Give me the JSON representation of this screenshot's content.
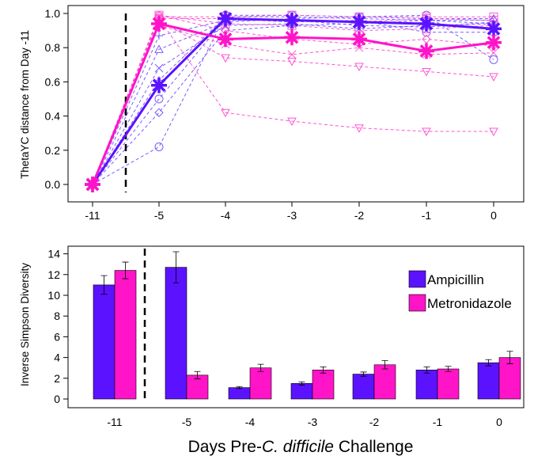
{
  "colors": {
    "ampicillin": "#5b13ff",
    "metronidazole": "#ff14c8",
    "ampicillin_light": "#7a5cff",
    "metronidazole_light": "#ff55d2",
    "frame": "#000000"
  },
  "chart_data": [
    {
      "type": "line",
      "title": "",
      "xlabel": "",
      "ylabel": "ThetaYC distance from Day -11",
      "categories": [
        "-11",
        "-5",
        "-4",
        "-3",
        "-2",
        "-1",
        "0"
      ],
      "ylim": [
        0,
        1.0
      ],
      "yticks": [
        "0.0",
        "0.2",
        "0.4",
        "0.6",
        "0.8",
        "1.0"
      ],
      "treatment_day_marker": "between -11 and -5",
      "series": [
        {
          "name": "Ampicillin",
          "group": "ampicillin",
          "kind": "mean",
          "values": [
            0.0,
            0.58,
            0.97,
            0.96,
            0.95,
            0.94,
            0.91
          ]
        },
        {
          "name": "Metronidazole",
          "group": "metronidazole",
          "kind": "mean",
          "values": [
            0.0,
            0.94,
            0.85,
            0.86,
            0.85,
            0.78,
            0.83
          ]
        },
        {
          "group": "ampicillin",
          "kind": "individual",
          "symbol": "circle",
          "values": [
            0.0,
            0.22,
            0.99,
            0.99,
            0.98,
            0.99,
            0.73
          ]
        },
        {
          "group": "ampicillin",
          "kind": "individual",
          "symbol": "plus",
          "values": [
            0.0,
            0.87,
            0.96,
            0.96,
            0.93,
            0.92,
            0.95
          ]
        },
        {
          "group": "ampicillin",
          "kind": "individual",
          "symbol": "triangle",
          "values": [
            0.0,
            0.79,
            0.95,
            0.97,
            0.98,
            0.97,
            0.97
          ]
        },
        {
          "group": "ampicillin",
          "kind": "individual",
          "symbol": "diamond",
          "values": [
            0.0,
            0.42,
            0.9,
            0.93,
            0.94,
            0.96,
            0.96
          ]
        },
        {
          "group": "ampicillin",
          "kind": "individual",
          "symbol": "x",
          "values": [
            0.0,
            0.68,
            0.93,
            0.94,
            0.91,
            0.93,
            0.94
          ]
        },
        {
          "group": "ampicillin",
          "kind": "individual",
          "symbol": "circle",
          "values": [
            0.0,
            0.5,
            0.97,
            0.95,
            0.96,
            0.89,
            0.89
          ]
        },
        {
          "group": "ampicillin",
          "kind": "individual",
          "symbol": "plus",
          "values": [
            0.0,
            0.61,
            0.98,
            0.98,
            0.97,
            0.96,
            0.94
          ]
        },
        {
          "group": "metronidazole",
          "kind": "individual",
          "symbol": "square",
          "values": [
            0.0,
            0.98,
            0.98,
            0.99,
            0.98,
            0.98,
            0.98
          ]
        },
        {
          "group": "metronidazole",
          "kind": "individual",
          "symbol": "tri-down",
          "values": [
            0.0,
            0.97,
            0.42,
            0.37,
            0.33,
            0.31,
            0.31
          ]
        },
        {
          "group": "metronidazole",
          "kind": "individual",
          "symbol": "tri-down",
          "values": [
            0.0,
            0.96,
            0.74,
            0.72,
            0.69,
            0.66,
            0.63
          ]
        },
        {
          "group": "metronidazole",
          "kind": "individual",
          "symbol": "x",
          "values": [
            0.0,
            0.93,
            0.82,
            0.76,
            0.8,
            0.76,
            0.77
          ]
        },
        {
          "group": "metronidazole",
          "kind": "individual",
          "symbol": "diamond",
          "values": [
            0.0,
            0.99,
            0.9,
            0.85,
            0.82,
            0.85,
            0.81
          ]
        },
        {
          "group": "metronidazole",
          "kind": "individual",
          "symbol": "square",
          "values": [
            0.0,
            0.99,
            0.94,
            0.93,
            0.9,
            0.91,
            0.93
          ]
        },
        {
          "group": "metronidazole",
          "kind": "individual",
          "symbol": "square",
          "values": [
            0.0,
            0.97,
            0.97,
            0.96,
            0.95,
            0.97,
            0.96
          ]
        }
      ]
    },
    {
      "type": "bar",
      "title": "",
      "xlabel": "Days Pre-C. difficile Challenge",
      "ylabel": "Inverse Simpson Diversity",
      "categories": [
        "-11",
        "-5",
        "-4",
        "-3",
        "-2",
        "-1",
        "0"
      ],
      "ylim": [
        0,
        14
      ],
      "yticks": [
        "0",
        "2",
        "4",
        "6",
        "8",
        "10",
        "12",
        "14"
      ],
      "legend_position": "top-right",
      "treatment_day_marker": "between -11 and -5",
      "series": [
        {
          "name": "Ampicillin",
          "group": "ampicillin",
          "values": [
            11.0,
            12.7,
            1.1,
            1.5,
            2.4,
            2.8,
            3.5
          ],
          "errors": [
            0.9,
            1.5,
            0.1,
            0.15,
            0.2,
            0.3,
            0.3
          ]
        },
        {
          "name": "Metronidazole",
          "group": "metronidazole",
          "values": [
            12.4,
            2.3,
            3.0,
            2.8,
            3.3,
            2.9,
            4.0
          ],
          "errors": [
            0.8,
            0.35,
            0.35,
            0.3,
            0.4,
            0.25,
            0.6
          ]
        }
      ]
    }
  ]
}
